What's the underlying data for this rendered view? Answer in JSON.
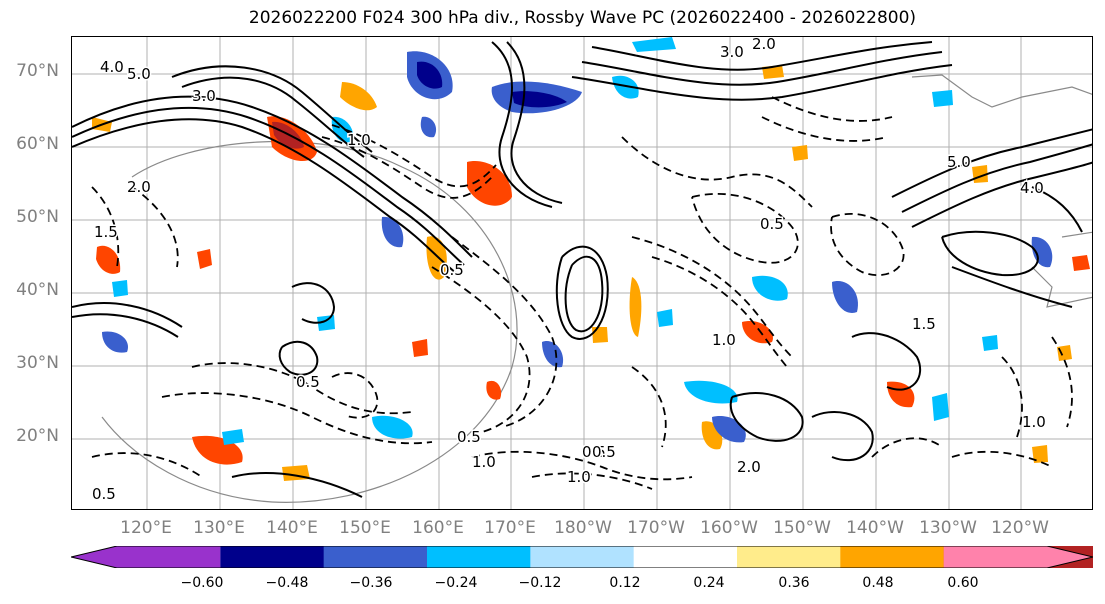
{
  "title": "2026022200 F024 300 hPa div., Rossby Wave PC (2026022400 - 2026022800)",
  "lat_labels": [
    "70°N",
    "60°N",
    "50°N",
    "40°N",
    "30°N",
    "20°N"
  ],
  "lon_labels": [
    "120°E",
    "130°E",
    "140°E",
    "150°E",
    "160°E",
    "170°E",
    "180°W",
    "170°W",
    "160°W",
    "150°W",
    "140°W",
    "130°W",
    "120°W"
  ],
  "colorbar": {
    "colors": [
      "#9932cc",
      "#00008b",
      "#3a5fcd",
      "#00bfff",
      "#b0e2ff",
      "#ffffff",
      "#ffec8b",
      "#ffa500",
      "#ff4500",
      "#b22222",
      "#ff82ab"
    ],
    "tick_labels": [
      "−0.60",
      "−0.48",
      "−0.36",
      "−0.24",
      "−0.12",
      "0.12",
      "0.24",
      "0.36",
      "0.48",
      "0.60"
    ]
  },
  "contour_labels": [
    "4.0",
    "5.0",
    "3.0",
    "2.0",
    "1.5",
    "1.0",
    "0.5",
    "0.5",
    "1.0",
    "2.0",
    "0.5",
    "1.0",
    "0.5",
    "0.5",
    "1.5",
    "5.0",
    "4.0",
    "2.0",
    "0.5",
    "3.0",
    "1.0",
    "0.5",
    "1.0"
  ]
}
